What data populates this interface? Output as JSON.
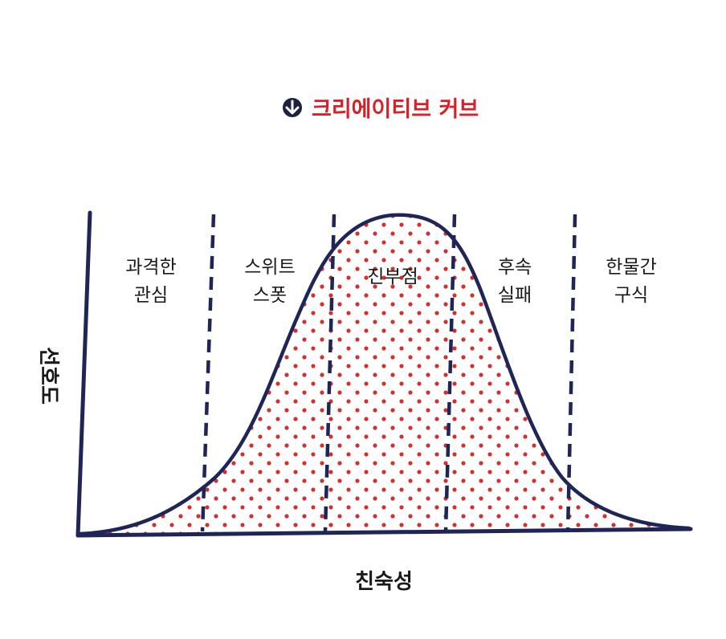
{
  "title": {
    "text": "크리에이티브 커브",
    "icon": "circled-down-arrow-icon",
    "color": "#d72027",
    "icon_color": "#1c2340"
  },
  "axes": {
    "y_label": "선호도",
    "x_label": "친숙성"
  },
  "regions": [
    {
      "lines": [
        "과격한",
        "관심"
      ]
    },
    {
      "lines": [
        "스위트",
        "스폿"
      ]
    },
    {
      "lines": [
        "진부점"
      ]
    },
    {
      "lines": [
        "후속",
        "실패"
      ]
    },
    {
      "lines": [
        "한물간",
        "구식"
      ]
    }
  ],
  "colors": {
    "curve": "#1f2557",
    "dots": "#d0312d",
    "text": "#1a1a1a"
  }
}
